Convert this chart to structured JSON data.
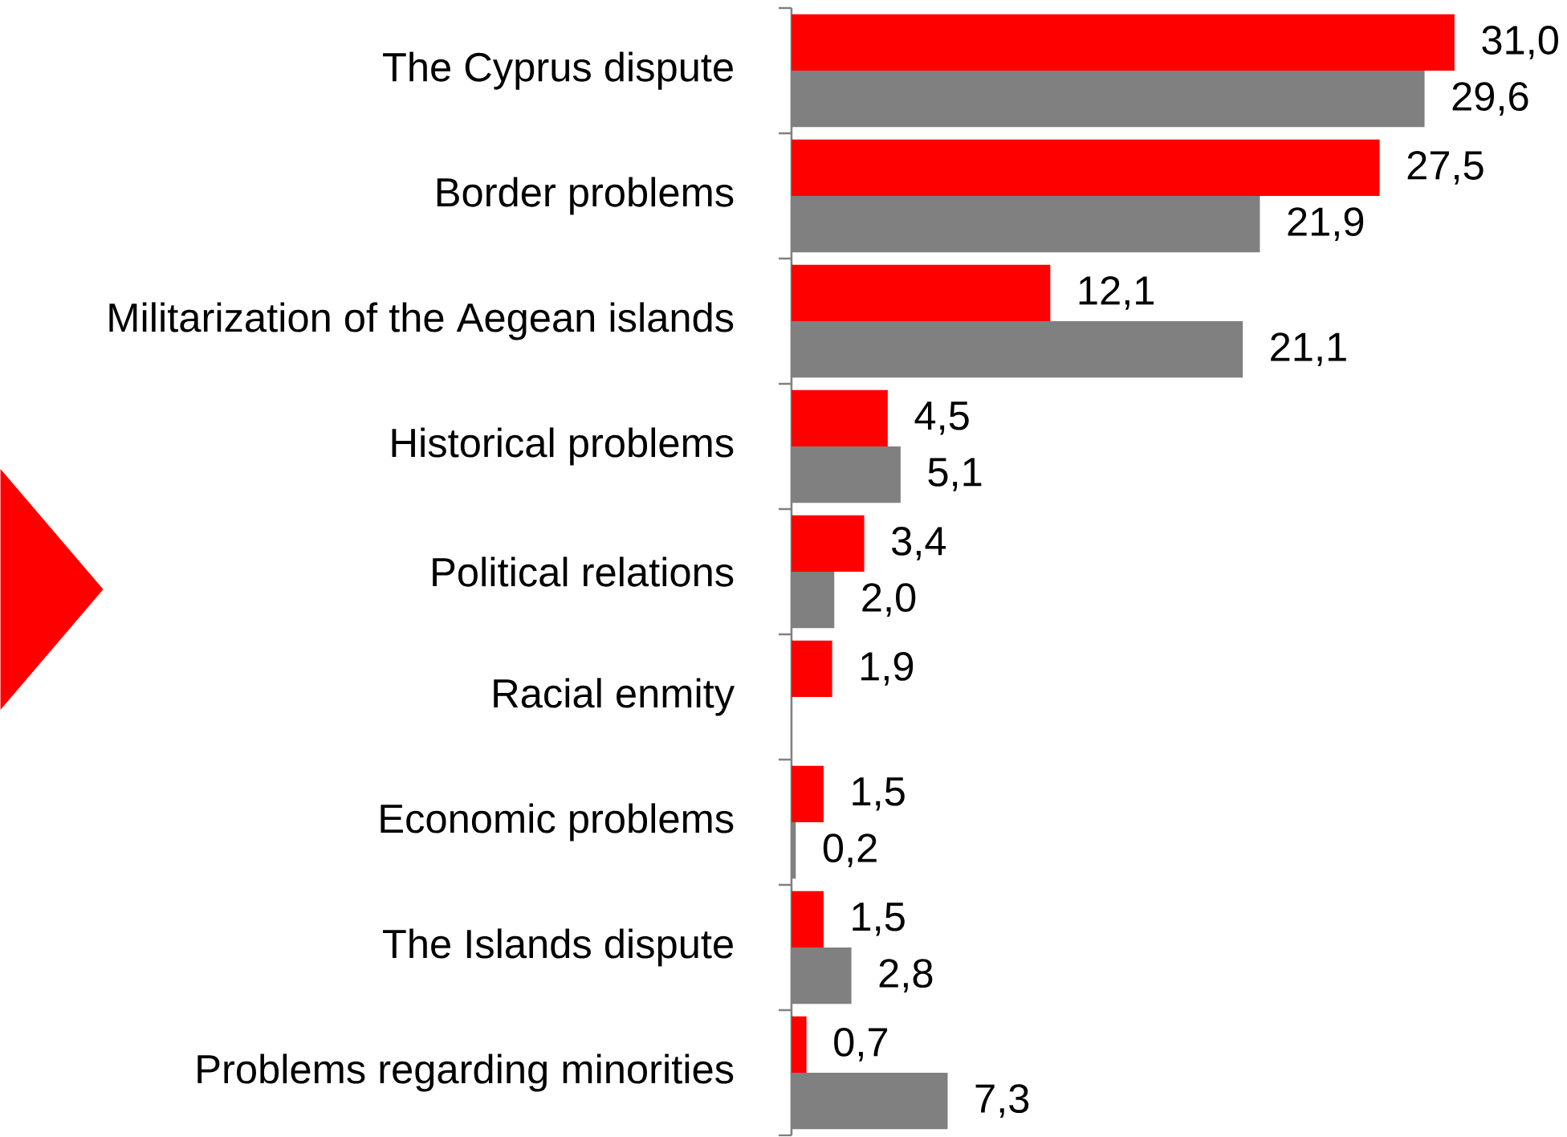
{
  "chart_data": {
    "type": "bar",
    "orientation": "horizontal",
    "categories": [
      "The Cyprus dispute",
      "Border problems",
      "Militarization of the Aegean islands",
      "Historical problems",
      "Political relations",
      "Racial enmity",
      "Economic problems",
      "The Islands dispute",
      "Problems regarding minorities"
    ],
    "series": [
      {
        "color": "#ff0000",
        "values": [
          31.0,
          27.5,
          12.1,
          4.5,
          3.4,
          1.9,
          1.5,
          1.5,
          0.7
        ],
        "value_labels": [
          "31,0",
          "27,5",
          "12,1",
          "4,5",
          "3,4",
          "1,9",
          "1,5",
          "1,5",
          "0,7"
        ]
      },
      {
        "color": "#808080",
        "values": [
          29.6,
          21.9,
          21.1,
          5.1,
          2.0,
          null,
          0.2,
          2.8,
          7.3
        ],
        "value_labels": [
          "29,6",
          "21,9",
          "21,1",
          "5,1",
          "2,0",
          null,
          "0,2",
          "2,8",
          "7,3"
        ]
      }
    ]
  }
}
